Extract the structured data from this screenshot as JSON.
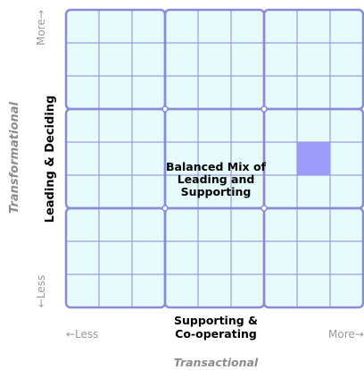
{
  "grid": {
    "rows": 9,
    "columns": 9,
    "fill_color": "#e6fcfb",
    "line_color": "#9c9ce3",
    "major_line_color": "#8a8ad8",
    "highlight_color": "#9b9cf7",
    "highlight_cell": {
      "row": 4,
      "column": 7
    }
  },
  "center_label": "Balanced Mix of\nLeading and\nSupporting",
  "x_axis": {
    "title": "Supporting &\nCo-operating",
    "less": "←Less",
    "more": "More→",
    "caption": "Transactional"
  },
  "y_axis": {
    "title": "Leading & Deciding",
    "less": "←Less",
    "more": "More→",
    "caption": "Transformational"
  }
}
